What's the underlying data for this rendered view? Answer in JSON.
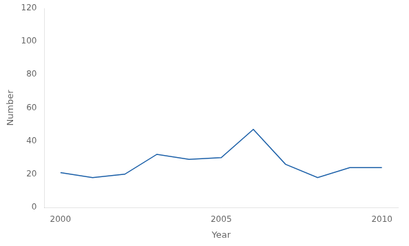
{
  "chart_data": {
    "type": "line",
    "x": [
      2000,
      2001,
      2002,
      2003,
      2004,
      2005,
      2006,
      2007,
      2008,
      2009,
      2010
    ],
    "values": [
      21,
      18,
      20,
      32,
      29,
      30,
      47,
      26,
      18,
      24,
      24
    ],
    "color": "#1a5fa8",
    "xlabel": "Year",
    "ylabel": "Number",
    "xlim": [
      1999.5,
      2010.5
    ],
    "ylim": [
      0,
      120
    ],
    "xticks": [
      2000,
      2005,
      2010
    ],
    "yticks": [
      0,
      20,
      40,
      60,
      80,
      100,
      120
    ],
    "grid": false
  }
}
